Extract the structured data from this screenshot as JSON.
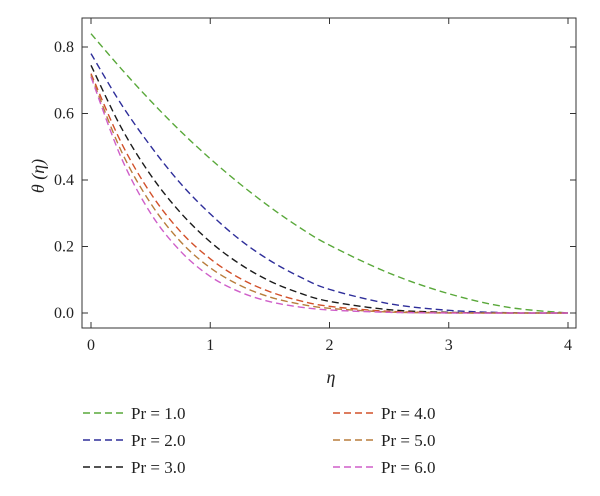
{
  "chart_data": {
    "type": "line",
    "title": "",
    "xlabel": "η",
    "ylabel": "θ (η)",
    "xlim": [
      0,
      4
    ],
    "ylim": [
      0,
      0.85
    ],
    "x_ticks": [
      "0",
      "1",
      "2",
      "3",
      "4"
    ],
    "y_ticks": [
      "0.0",
      "0.2",
      "0.4",
      "0.6",
      "0.8"
    ],
    "grid": false,
    "legend_position": "bottom",
    "x": [
      0,
      0.25,
      0.5,
      0.75,
      1.0,
      1.25,
      1.5,
      1.75,
      2.0,
      2.5,
      3.0,
      3.5,
      4.0
    ],
    "series": [
      {
        "name": "Pr = 1.0",
        "color": "#59a83a",
        "values": [
          0.84,
          0.736,
          0.638,
          0.547,
          0.464,
          0.388,
          0.319,
          0.257,
          0.204,
          0.12,
          0.058,
          0.017,
          0.0
        ]
      },
      {
        "name": "Pr = 2.0",
        "color": "#2e2e9a",
        "values": [
          0.78,
          0.63,
          0.502,
          0.39,
          0.298,
          0.22,
          0.158,
          0.109,
          0.071,
          0.028,
          0.008,
          0.001,
          0.0
        ]
      },
      {
        "name": "Pr = 3.0",
        "color": "#1a1a1a",
        "values": [
          0.745,
          0.56,
          0.415,
          0.302,
          0.214,
          0.147,
          0.096,
          0.06,
          0.035,
          0.01,
          0.002,
          0.0,
          0.0
        ]
      },
      {
        "name": "Pr = 4.0",
        "color": "#d2502a",
        "values": [
          0.72,
          0.515,
          0.36,
          0.245,
          0.163,
          0.104,
          0.064,
          0.037,
          0.02,
          0.005,
          0.001,
          0.0,
          0.0
        ]
      },
      {
        "name": "Pr = 5.0",
        "color": "#b87d3c",
        "values": [
          0.715,
          0.49,
          0.33,
          0.215,
          0.136,
          0.083,
          0.048,
          0.027,
          0.014,
          0.003,
          0.0,
          0.0,
          0.0
        ]
      },
      {
        "name": "Pr = 6.0",
        "color": "#cf5fc9",
        "values": [
          0.71,
          0.47,
          0.3,
          0.186,
          0.11,
          0.063,
          0.034,
          0.018,
          0.009,
          0.002,
          0.0,
          0.0,
          0.0
        ]
      }
    ]
  }
}
